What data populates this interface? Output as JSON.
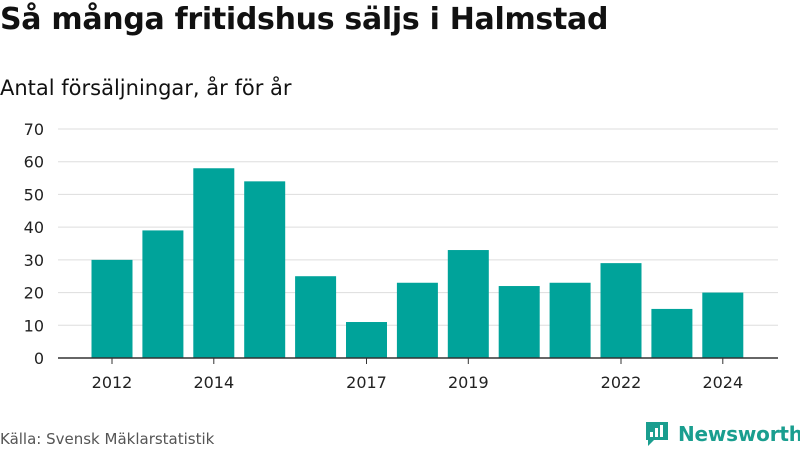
{
  "header": {
    "title": "Så många fritidshus säljs i Halmstad",
    "subtitle": "Antal försäljningar, år för år"
  },
  "footer": {
    "source": "Källa: Svensk Mäklarstatistik",
    "brand": "Newsworthy"
  },
  "colors": {
    "bar": "#00a39a",
    "brand": "#1a9e8f",
    "grid": "#dddddd"
  },
  "chart_data": {
    "type": "bar",
    "title": "Så många fritidshus säljs i Halmstad",
    "subtitle": "Antal försäljningar, år för år",
    "xlabel": "",
    "ylabel": "",
    "categories": [
      "2012",
      "2013",
      "2014",
      "2015",
      "2016",
      "2017",
      "2018",
      "2019",
      "2020",
      "2021",
      "2022",
      "2023",
      "2024"
    ],
    "values": [
      30,
      39,
      58,
      54,
      25,
      11,
      23,
      33,
      22,
      23,
      29,
      15,
      20
    ],
    "x_tick_labels": [
      "2012",
      "2014",
      "2017",
      "2019",
      "2022",
      "2024"
    ],
    "y_ticks": [
      0,
      10,
      20,
      30,
      40,
      50,
      60,
      70
    ],
    "ylim": [
      0,
      70
    ],
    "grid": true,
    "legend": "none"
  }
}
